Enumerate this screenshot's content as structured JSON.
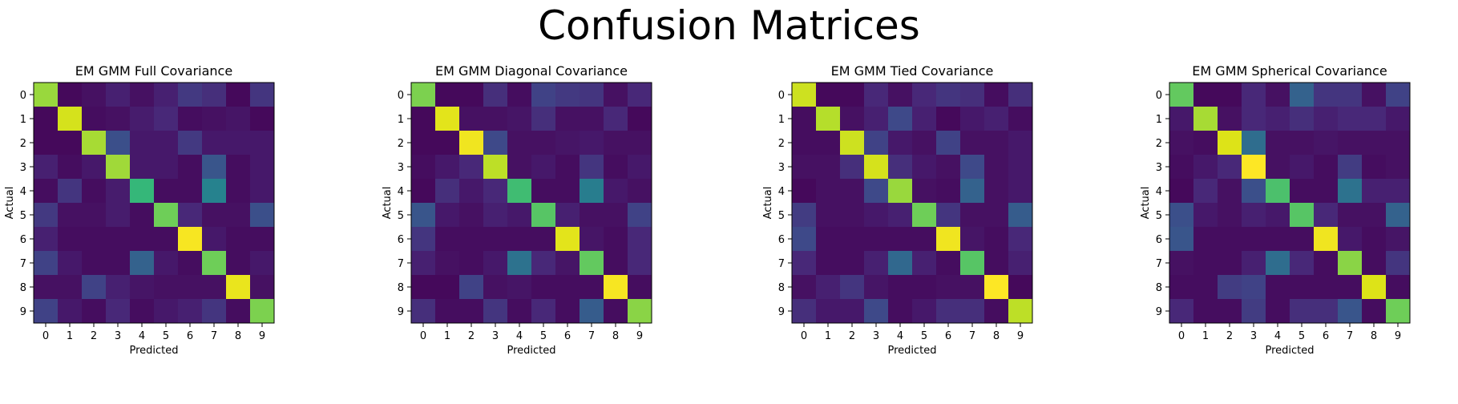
{
  "figure_title": "Confusion Matrices",
  "chart_data": [
    {
      "type": "heatmap",
      "title": "EM GMM Full Covariance",
      "xlabel": "Predicted",
      "ylabel": "Actual",
      "x_ticks": [
        "0",
        "1",
        "2",
        "3",
        "4",
        "5",
        "6",
        "7",
        "8",
        "9"
      ],
      "y_ticks": [
        "0",
        "1",
        "2",
        "3",
        "4",
        "5",
        "6",
        "7",
        "8",
        "9"
      ],
      "colormap": "viridis",
      "matrix": [
        [
          0.76,
          0.02,
          0.04,
          0.08,
          0.04,
          0.08,
          0.15,
          0.12,
          0.02,
          0.14
        ],
        [
          0.02,
          0.88,
          0.03,
          0.04,
          0.07,
          0.1,
          0.03,
          0.04,
          0.05,
          0.02
        ],
        [
          0.02,
          0.02,
          0.78,
          0.22,
          0.06,
          0.06,
          0.15,
          0.06,
          0.06,
          0.06
        ],
        [
          0.08,
          0.03,
          0.06,
          0.77,
          0.06,
          0.06,
          0.03,
          0.24,
          0.03,
          0.06
        ],
        [
          0.03,
          0.14,
          0.03,
          0.07,
          0.6,
          0.03,
          0.03,
          0.4,
          0.03,
          0.06
        ],
        [
          0.15,
          0.04,
          0.04,
          0.07,
          0.03,
          0.7,
          0.1,
          0.04,
          0.04,
          0.22
        ],
        [
          0.08,
          0.03,
          0.03,
          0.03,
          0.03,
          0.03,
          0.98,
          0.06,
          0.03,
          0.03
        ],
        [
          0.18,
          0.06,
          0.03,
          0.03,
          0.28,
          0.06,
          0.03,
          0.7,
          0.03,
          0.06
        ],
        [
          0.04,
          0.04,
          0.18,
          0.08,
          0.05,
          0.04,
          0.04,
          0.04,
          0.94,
          0.04
        ],
        [
          0.18,
          0.06,
          0.03,
          0.1,
          0.03,
          0.06,
          0.08,
          0.14,
          0.03,
          0.72
        ]
      ]
    },
    {
      "type": "heatmap",
      "title": "EM GMM Diagonal Covariance",
      "xlabel": "Predicted",
      "ylabel": "Actual",
      "x_ticks": [
        "0",
        "1",
        "2",
        "3",
        "4",
        "5",
        "6",
        "7",
        "8",
        "9"
      ],
      "y_ticks": [
        "0",
        "1",
        "2",
        "3",
        "4",
        "5",
        "6",
        "7",
        "8",
        "9"
      ],
      "colormap": "viridis",
      "matrix": [
        [
          0.72,
          0.02,
          0.02,
          0.12,
          0.03,
          0.18,
          0.15,
          0.14,
          0.04,
          0.1
        ],
        [
          0.02,
          0.92,
          0.04,
          0.04,
          0.05,
          0.12,
          0.04,
          0.04,
          0.1,
          0.02
        ],
        [
          0.02,
          0.02,
          0.96,
          0.2,
          0.04,
          0.04,
          0.05,
          0.06,
          0.04,
          0.04
        ],
        [
          0.03,
          0.06,
          0.1,
          0.82,
          0.04,
          0.06,
          0.03,
          0.14,
          0.03,
          0.06
        ],
        [
          0.02,
          0.12,
          0.06,
          0.1,
          0.62,
          0.03,
          0.03,
          0.38,
          0.06,
          0.04
        ],
        [
          0.24,
          0.06,
          0.04,
          0.08,
          0.06,
          0.66,
          0.08,
          0.04,
          0.04,
          0.18
        ],
        [
          0.14,
          0.03,
          0.03,
          0.03,
          0.03,
          0.03,
          0.92,
          0.05,
          0.03,
          0.1
        ],
        [
          0.08,
          0.04,
          0.03,
          0.06,
          0.34,
          0.1,
          0.05,
          0.68,
          0.03,
          0.1
        ],
        [
          0.02,
          0.02,
          0.18,
          0.04,
          0.05,
          0.03,
          0.03,
          0.03,
          0.98,
          0.03
        ],
        [
          0.12,
          0.03,
          0.03,
          0.14,
          0.03,
          0.1,
          0.03,
          0.26,
          0.03,
          0.74
        ]
      ]
    },
    {
      "type": "heatmap",
      "title": "EM GMM Tied Covariance",
      "xlabel": "Predicted",
      "ylabel": "Actual",
      "x_ticks": [
        "0",
        "1",
        "2",
        "3",
        "4",
        "5",
        "6",
        "7",
        "8",
        "9"
      ],
      "y_ticks": [
        "0",
        "1",
        "2",
        "3",
        "4",
        "5",
        "6",
        "7",
        "8",
        "9"
      ],
      "colormap": "viridis",
      "matrix": [
        [
          0.86,
          0.02,
          0.02,
          0.1,
          0.04,
          0.1,
          0.14,
          0.12,
          0.03,
          0.12
        ],
        [
          0.03,
          0.8,
          0.04,
          0.08,
          0.2,
          0.08,
          0.02,
          0.06,
          0.08,
          0.03
        ],
        [
          0.03,
          0.03,
          0.86,
          0.18,
          0.06,
          0.04,
          0.18,
          0.04,
          0.04,
          0.06
        ],
        [
          0.04,
          0.04,
          0.12,
          0.88,
          0.12,
          0.06,
          0.04,
          0.2,
          0.04,
          0.06
        ],
        [
          0.02,
          0.04,
          0.04,
          0.2,
          0.76,
          0.04,
          0.03,
          0.28,
          0.04,
          0.06
        ],
        [
          0.16,
          0.04,
          0.04,
          0.06,
          0.08,
          0.7,
          0.14,
          0.04,
          0.04,
          0.26
        ],
        [
          0.2,
          0.03,
          0.03,
          0.03,
          0.03,
          0.03,
          0.96,
          0.05,
          0.03,
          0.1
        ],
        [
          0.1,
          0.03,
          0.03,
          0.08,
          0.3,
          0.08,
          0.03,
          0.66,
          0.03,
          0.08
        ],
        [
          0.04,
          0.08,
          0.14,
          0.05,
          0.03,
          0.03,
          0.04,
          0.04,
          1.0,
          0.02
        ],
        [
          0.12,
          0.06,
          0.06,
          0.2,
          0.03,
          0.06,
          0.12,
          0.12,
          0.03,
          0.82
        ]
      ]
    },
    {
      "type": "heatmap",
      "title": "EM GMM Spherical Covariance",
      "xlabel": "Predicted",
      "ylabel": "Actual",
      "x_ticks": [
        "0",
        "1",
        "2",
        "3",
        "4",
        "5",
        "6",
        "7",
        "8",
        "9"
      ],
      "y_ticks": [
        "0",
        "1",
        "2",
        "3",
        "4",
        "5",
        "6",
        "7",
        "8",
        "9"
      ],
      "colormap": "viridis",
      "matrix": [
        [
          0.68,
          0.02,
          0.02,
          0.1,
          0.04,
          0.28,
          0.14,
          0.14,
          0.04,
          0.18
        ],
        [
          0.06,
          0.78,
          0.04,
          0.1,
          0.08,
          0.12,
          0.08,
          0.1,
          0.1,
          0.06
        ],
        [
          0.04,
          0.03,
          0.9,
          0.32,
          0.04,
          0.04,
          0.05,
          0.04,
          0.04,
          0.04
        ],
        [
          0.03,
          0.06,
          0.1,
          1.0,
          0.04,
          0.06,
          0.03,
          0.16,
          0.03,
          0.04
        ],
        [
          0.02,
          0.1,
          0.04,
          0.22,
          0.64,
          0.03,
          0.03,
          0.34,
          0.08,
          0.08
        ],
        [
          0.22,
          0.06,
          0.04,
          0.08,
          0.06,
          0.66,
          0.1,
          0.04,
          0.04,
          0.28
        ],
        [
          0.24,
          0.03,
          0.03,
          0.03,
          0.03,
          0.03,
          0.96,
          0.06,
          0.03,
          0.05
        ],
        [
          0.04,
          0.03,
          0.03,
          0.08,
          0.32,
          0.1,
          0.03,
          0.74,
          0.03,
          0.14
        ],
        [
          0.03,
          0.03,
          0.16,
          0.18,
          0.03,
          0.03,
          0.03,
          0.03,
          0.9,
          0.03
        ],
        [
          0.1,
          0.03,
          0.03,
          0.16,
          0.03,
          0.12,
          0.12,
          0.24,
          0.03,
          0.7
        ]
      ]
    }
  ]
}
